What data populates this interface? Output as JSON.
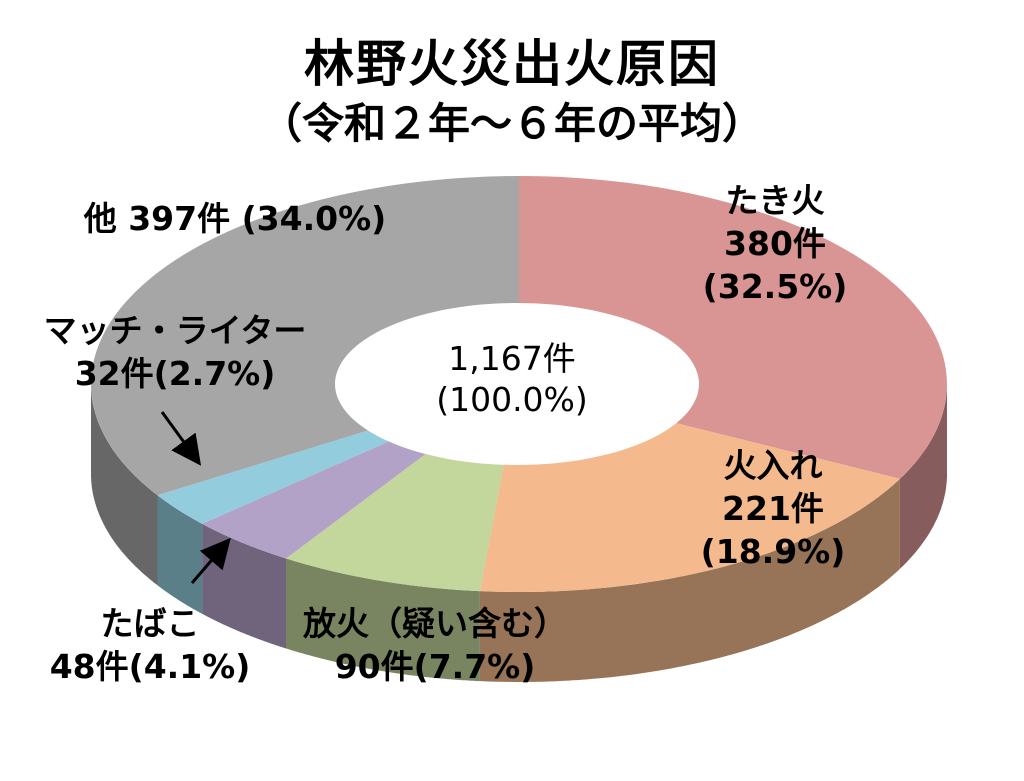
{
  "chart_data": {
    "type": "pie",
    "title": "林野火災出火原因",
    "subtitle": "（令和２年～６年の平均）",
    "center": {
      "count": "1,167件",
      "percent": "(100.0%)"
    },
    "slices": [
      {
        "name": "たき火",
        "count": "380件",
        "percent": "(32.5%)",
        "value": 380,
        "share": 32.5,
        "color": "#d99594"
      },
      {
        "name": "火入れ",
        "count": "221件",
        "percent": "(18.9%)",
        "value": 221,
        "share": 18.9,
        "color": "#f4b98c"
      },
      {
        "name": "放火（疑い含む）",
        "label": "90件(7.7%)",
        "value": 90,
        "share": 7.7,
        "color": "#c3d69b"
      },
      {
        "name": "たばこ",
        "label": "48件(4.1%)",
        "value": 48,
        "share": 4.1,
        "color": "#b3a2c7"
      },
      {
        "name": "マッチ・ライター",
        "label": "32件(2.7%)",
        "value": 32,
        "share": 2.7,
        "color": "#93cddd"
      },
      {
        "label": "他 397件 (34.0%)",
        "value": 397,
        "share": 34.0,
        "color": "#a6a6a6"
      }
    ]
  }
}
